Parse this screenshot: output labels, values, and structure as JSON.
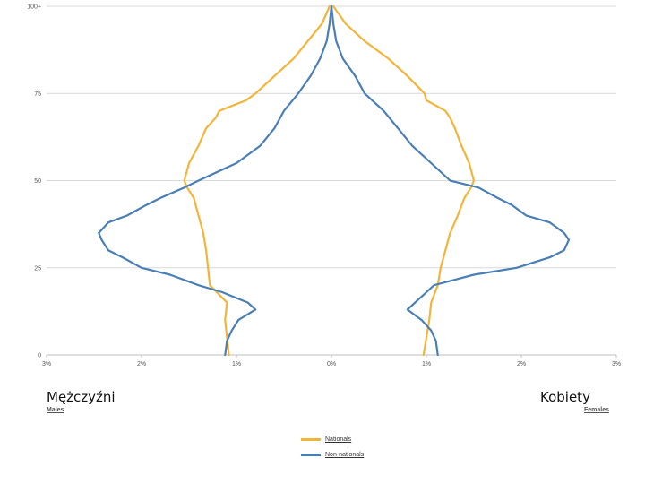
{
  "labels": {
    "left_big": "Mężczyźni",
    "right_big": "Kobiety",
    "left_small": "Males",
    "right_small": "Females"
  },
  "chart_data": {
    "type": "line",
    "chart_kind": "population-pyramid",
    "y_tick_labels": [
      "0",
      "25",
      "50",
      "75",
      "100+"
    ],
    "y_ticks": [
      0,
      25,
      50,
      75,
      100
    ],
    "ylim": [
      0,
      100
    ],
    "x_tick_labels": [
      "3%",
      "2%",
      "1%",
      "0%",
      "1%",
      "2%",
      "3%"
    ],
    "x_ticks": [
      -3,
      -2,
      -1,
      0,
      1,
      2,
      3
    ],
    "xlim": [
      -3,
      3
    ],
    "grid": true,
    "legend_position": "bottom-center",
    "series": [
      {
        "name": "Nationals",
        "color": "#f3b43a",
        "points_males": [
          [
            0,
            -1.08
          ],
          [
            5,
            -1.1
          ],
          [
            10,
            -1.12
          ],
          [
            15,
            -1.1
          ],
          [
            20,
            -1.28
          ],
          [
            25,
            -1.3
          ],
          [
            30,
            -1.32
          ],
          [
            35,
            -1.35
          ],
          [
            40,
            -1.4
          ],
          [
            45,
            -1.45
          ],
          [
            48,
            -1.52
          ],
          [
            50,
            -1.55
          ],
          [
            55,
            -1.5
          ],
          [
            60,
            -1.4
          ],
          [
            65,
            -1.32
          ],
          [
            68,
            -1.22
          ],
          [
            70,
            -1.18
          ],
          [
            73,
            -0.9
          ],
          [
            75,
            -0.8
          ],
          [
            80,
            -0.6
          ],
          [
            85,
            -0.4
          ],
          [
            90,
            -0.25
          ],
          [
            95,
            -0.1
          ],
          [
            100,
            -0.02
          ]
        ],
        "points_females": [
          [
            0,
            0.97
          ],
          [
            5,
            1.0
          ],
          [
            10,
            1.03
          ],
          [
            15,
            1.05
          ],
          [
            20,
            1.12
          ],
          [
            25,
            1.15
          ],
          [
            30,
            1.2
          ],
          [
            35,
            1.25
          ],
          [
            40,
            1.33
          ],
          [
            45,
            1.4
          ],
          [
            48,
            1.47
          ],
          [
            50,
            1.5
          ],
          [
            55,
            1.45
          ],
          [
            60,
            1.37
          ],
          [
            65,
            1.3
          ],
          [
            68,
            1.25
          ],
          [
            70,
            1.2
          ],
          [
            73,
            1.0
          ],
          [
            75,
            0.98
          ],
          [
            80,
            0.8
          ],
          [
            85,
            0.6
          ],
          [
            90,
            0.35
          ],
          [
            95,
            0.15
          ],
          [
            100,
            0.02
          ]
        ]
      },
      {
        "name": "Non-nationals",
        "color": "#4a7fb5",
        "points_males": [
          [
            0,
            -1.12
          ],
          [
            4,
            -1.1
          ],
          [
            7,
            -1.05
          ],
          [
            10,
            -0.98
          ],
          [
            13,
            -0.8
          ],
          [
            15,
            -0.88
          ],
          [
            18,
            -1.15
          ],
          [
            20,
            -1.4
          ],
          [
            23,
            -1.7
          ],
          [
            25,
            -2.0
          ],
          [
            28,
            -2.2
          ],
          [
            30,
            -2.35
          ],
          [
            33,
            -2.42
          ],
          [
            35,
            -2.45
          ],
          [
            38,
            -2.35
          ],
          [
            40,
            -2.15
          ],
          [
            43,
            -1.95
          ],
          [
            45,
            -1.8
          ],
          [
            48,
            -1.55
          ],
          [
            50,
            -1.4
          ],
          [
            55,
            -1.0
          ],
          [
            60,
            -0.75
          ],
          [
            65,
            -0.6
          ],
          [
            70,
            -0.5
          ],
          [
            75,
            -0.35
          ],
          [
            80,
            -0.22
          ],
          [
            85,
            -0.12
          ],
          [
            90,
            -0.05
          ],
          [
            95,
            -0.02
          ],
          [
            100,
            0.0
          ]
        ],
        "points_females": [
          [
            0,
            1.12
          ],
          [
            4,
            1.1
          ],
          [
            7,
            1.05
          ],
          [
            10,
            0.95
          ],
          [
            13,
            0.8
          ],
          [
            15,
            0.88
          ],
          [
            18,
            1.0
          ],
          [
            20,
            1.08
          ],
          [
            23,
            1.5
          ],
          [
            25,
            1.95
          ],
          [
            28,
            2.3
          ],
          [
            30,
            2.45
          ],
          [
            33,
            2.5
          ],
          [
            35,
            2.45
          ],
          [
            38,
            2.3
          ],
          [
            40,
            2.05
          ],
          [
            43,
            1.9
          ],
          [
            45,
            1.75
          ],
          [
            48,
            1.55
          ],
          [
            50,
            1.25
          ],
          [
            55,
            1.05
          ],
          [
            60,
            0.85
          ],
          [
            65,
            0.7
          ],
          [
            70,
            0.55
          ],
          [
            75,
            0.35
          ],
          [
            80,
            0.25
          ],
          [
            85,
            0.12
          ],
          [
            90,
            0.05
          ],
          [
            95,
            0.02
          ],
          [
            100,
            0.0
          ]
        ]
      }
    ]
  }
}
